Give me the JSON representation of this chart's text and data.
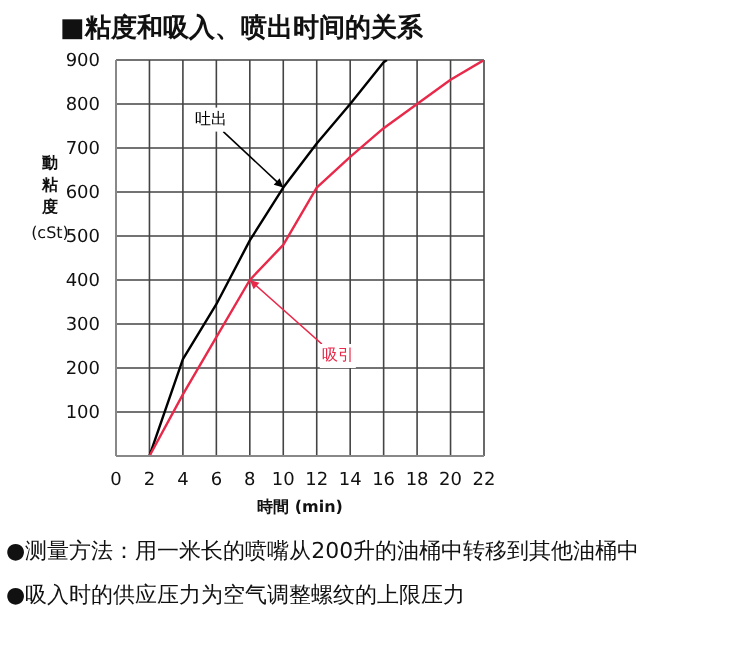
{
  "chart_data": {
    "type": "line",
    "title": "■粘度和吸入、喷出时间的关系",
    "xlabel": "時間 (min)",
    "ylabel": "動粘度 (cSt)",
    "series": [
      {
        "name": "吐出",
        "color": "#000000",
        "x": [
          2,
          4,
          6,
          8,
          10,
          12,
          14,
          16,
          16.2
        ],
        "values": [
          0,
          220,
          345,
          490,
          610,
          710,
          800,
          895,
          900
        ]
      },
      {
        "name": "吸引",
        "color": "#e8294a",
        "x": [
          2,
          4,
          6,
          8,
          10,
          12,
          14,
          16,
          18,
          20,
          22
        ],
        "values": [
          0,
          140,
          270,
          400,
          480,
          610,
          680,
          745,
          800,
          855,
          900
        ]
      }
    ],
    "xlim": [
      0,
      22
    ],
    "xticks": [
      0,
      2,
      4,
      6,
      8,
      10,
      12,
      14,
      16,
      18,
      20,
      22
    ],
    "ylim": [
      0,
      900
    ],
    "yticks": [
      {
        "value": 0,
        "label": null
      },
      100,
      200,
      300,
      400,
      500,
      600,
      700,
      800,
      900
    ],
    "grid": true,
    "marker": "none",
    "line_style": "solid",
    "legend": false,
    "annotations": [
      "●测量方法：用一米长的喷嘴从200升的油桶中转移到其他油桶中",
      "●吸入时的供应压力为空气调整螺纹的上限压力"
    ]
  }
}
